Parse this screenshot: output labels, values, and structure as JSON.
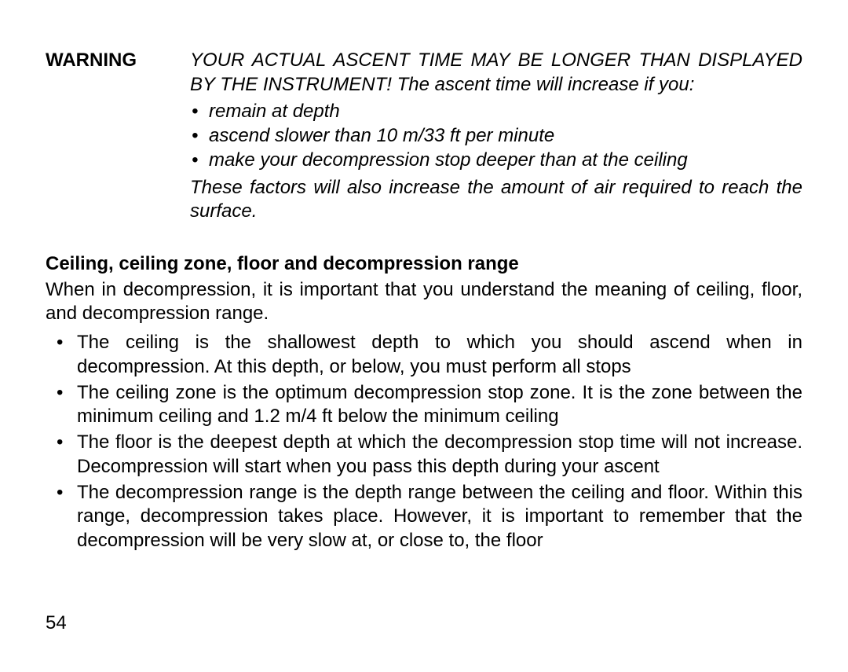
{
  "warning": {
    "label": "WARNING",
    "intro_caps_part": "YOUR ACTUAL ASCENT TIME MAY BE LONGER THAN DISPLAYED BY THE INSTRUMENT!",
    "intro_rest": " The ascent time will increase if you:",
    "bullets": [
      "remain at depth",
      "ascend slower than 10 m/33 ft per minute",
      "make your decompression stop deeper than at the ceiling"
    ],
    "outro": "These factors will also increase the amount of air required to reach the surface."
  },
  "section": {
    "heading": "Ceiling, ceiling zone, floor and decompression range",
    "intro": "When in decompression, it is important that you understand the meaning of ceiling, floor, and decompression range.",
    "items": [
      "The ceiling is the shallowest depth to which you should ascend when in decompression. At this depth, or below, you must perform all stops",
      "The ceiling zone is the optimum decompression stop zone. It is the zone between the minimum ceiling and 1.2 m/4 ft below the minimum ceiling",
      "The floor is the deepest depth at which the decompression stop time will not increase. Decompression will start when you pass this depth during your ascent",
      "The decompression range is the depth range between the ceiling and floor. Within this range, decompression takes place. However, it is important to remember that the decompression will be very slow at, or close to, the floor"
    ]
  },
  "page_number": "54"
}
